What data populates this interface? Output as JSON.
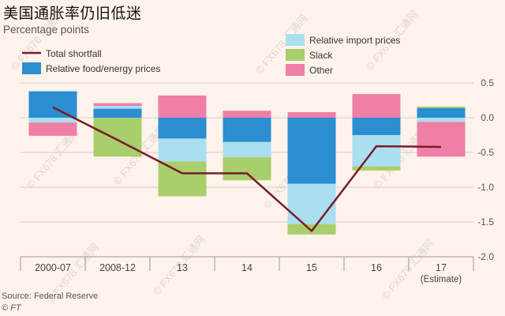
{
  "header": {
    "title": "美国通胀率仍旧低迷",
    "subtitle": "Percentage points"
  },
  "footer": {
    "source": "Source: Federal Reserve",
    "credit": "© FT"
  },
  "watermark_text": "© FX678 汇通网",
  "colors": {
    "background": "#fdf3ea",
    "food_energy": "#2a8ed0",
    "import_prices": "#a9dff1",
    "slack": "#a8cf6b",
    "other": "#ef7fa6",
    "shortfall": "#7a1b2b",
    "grid": "#cfcfcf",
    "axis": "#9a9a9a"
  },
  "chart_data": {
    "type": "bar",
    "stacked": true,
    "categories": [
      "2000-07",
      "2008-12",
      "13",
      "14",
      "15",
      "16",
      "17"
    ],
    "category_sublabels": [
      "",
      "",
      "",
      "",
      "",
      "",
      "(Estimate)"
    ],
    "y_axis_side": "right",
    "ylim": [
      -2.0,
      0.5
    ],
    "yticks": [
      0.5,
      0.0,
      -0.5,
      -1.0,
      -1.5,
      -2.0
    ],
    "ytick_labels": [
      "0.5",
      "0.0",
      "-0.5",
      "-1.0",
      "-1.5",
      "-2.0"
    ],
    "grid": true,
    "series": [
      {
        "name": "Relative food/energy prices",
        "key": "food_energy",
        "values": [
          0.38,
          0.13,
          -0.3,
          -0.35,
          -0.95,
          -0.25,
          0.14
        ]
      },
      {
        "name": "Relative import prices",
        "key": "import_prices",
        "values": [
          -0.07,
          0.04,
          -0.33,
          -0.22,
          -0.58,
          -0.45,
          -0.06
        ]
      },
      {
        "name": "Slack",
        "key": "slack",
        "values": [
          0.0,
          -0.56,
          -0.5,
          -0.33,
          -0.15,
          -0.06,
          0.02
        ]
      },
      {
        "name": "Other",
        "key": "other",
        "values": [
          -0.19,
          0.04,
          0.32,
          0.1,
          0.08,
          0.34,
          -0.5
        ]
      }
    ],
    "line": {
      "name": "Total shortfall",
      "values": [
        0.15,
        -0.32,
        -0.8,
        -0.8,
        -1.63,
        -0.41,
        -0.42
      ]
    },
    "legend": {
      "placement": "top",
      "items": [
        {
          "label": "Total shortfall",
          "key": "shortfall",
          "kind": "line"
        },
        {
          "label": "Relative food/energy prices",
          "key": "food_energy",
          "kind": "box"
        },
        {
          "label": "Relative import prices",
          "key": "import_prices",
          "kind": "box"
        },
        {
          "label": "Slack",
          "key": "slack",
          "kind": "box"
        },
        {
          "label": "Other",
          "key": "other",
          "kind": "box"
        }
      ]
    }
  }
}
